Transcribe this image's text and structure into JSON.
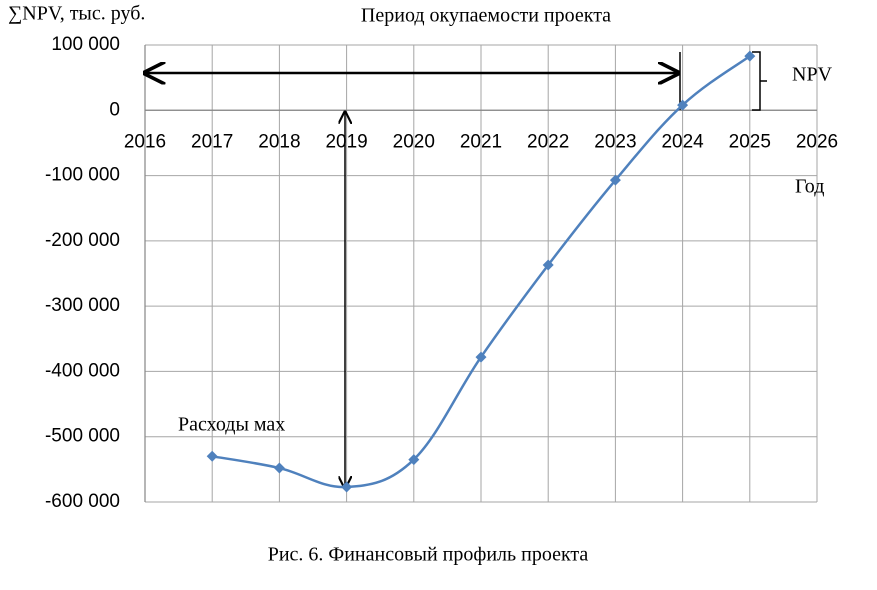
{
  "chart_data": {
    "type": "line",
    "title": "Период окупаемости проекта",
    "y_label": "∑NPV, тыс. руб.",
    "x_label": "Год",
    "annotations": [
      "NPV",
      "Расходы мах"
    ],
    "caption": "Рис. 6. Финансовый профиль проекта",
    "x": [
      2017,
      2018,
      2019,
      2020,
      2021,
      2022,
      2023,
      2024,
      2025
    ],
    "series": [
      {
        "name": "NPV",
        "color": "#4f81bd",
        "values": [
          -530000,
          -548000,
          -577000,
          -535000,
          -378000,
          -237000,
          -107000,
          8000,
          83000
        ]
      }
    ],
    "xlim": [
      2016,
      2026
    ],
    "xticks": [
      2016,
      2017,
      2018,
      2019,
      2020,
      2021,
      2022,
      2023,
      2024,
      2025,
      2026
    ],
    "ylim": [
      -600000,
      100000
    ],
    "yticks": [
      {
        "value": -600000,
        "label": "-600 000"
      },
      {
        "value": -500000,
        "label": "-500 000"
      },
      {
        "value": -400000,
        "label": "-400 000"
      },
      {
        "value": -300000,
        "label": "-300 000"
      },
      {
        "value": -200000,
        "label": "-200 000"
      },
      {
        "value": -100000,
        "label": "-100 000"
      },
      0,
      {
        "value": 100000,
        "label": "100 000"
      }
    ],
    "grid": true
  }
}
